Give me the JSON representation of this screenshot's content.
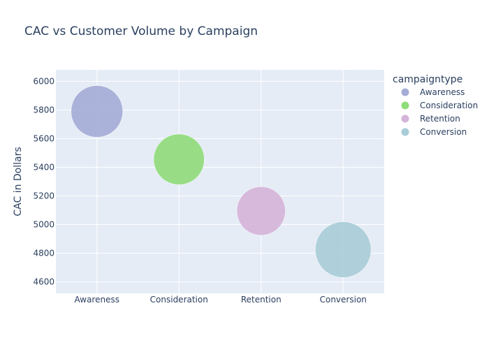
{
  "chart_data": {
    "type": "scatter",
    "title": "CAC vs Customer Volume by Campaign",
    "xlabel": "",
    "ylabel": "CAC in Dollars",
    "categories": [
      "Awareness",
      "Consideration",
      "Retention",
      "Conversion"
    ],
    "ylim": [
      4520,
      6080
    ],
    "yticks": [
      4600,
      4800,
      5000,
      5200,
      5400,
      5600,
      5800,
      6000
    ],
    "grid": true,
    "legend": {
      "title": "campaigntype",
      "position": "top-right"
    },
    "series": [
      {
        "name": "Awareness",
        "x": "Awareness",
        "y": 5790,
        "size": 1.0,
        "color": "#a4acd6"
      },
      {
        "name": "Consideration",
        "x": "Consideration",
        "y": 5455,
        "size": 0.98,
        "color": "#8fdc7a"
      },
      {
        "name": "Retention",
        "x": "Retention",
        "y": 5095,
        "size": 0.94,
        "color": "#d4b4d8"
      },
      {
        "name": "Conversion",
        "x": "Conversion",
        "y": 4825,
        "size": 1.08,
        "color": "#a8cdd7"
      }
    ],
    "colors": {
      "plot_bg": "#e5ecf6",
      "grid": "#ffffff",
      "text": "#2a3f5f"
    }
  }
}
